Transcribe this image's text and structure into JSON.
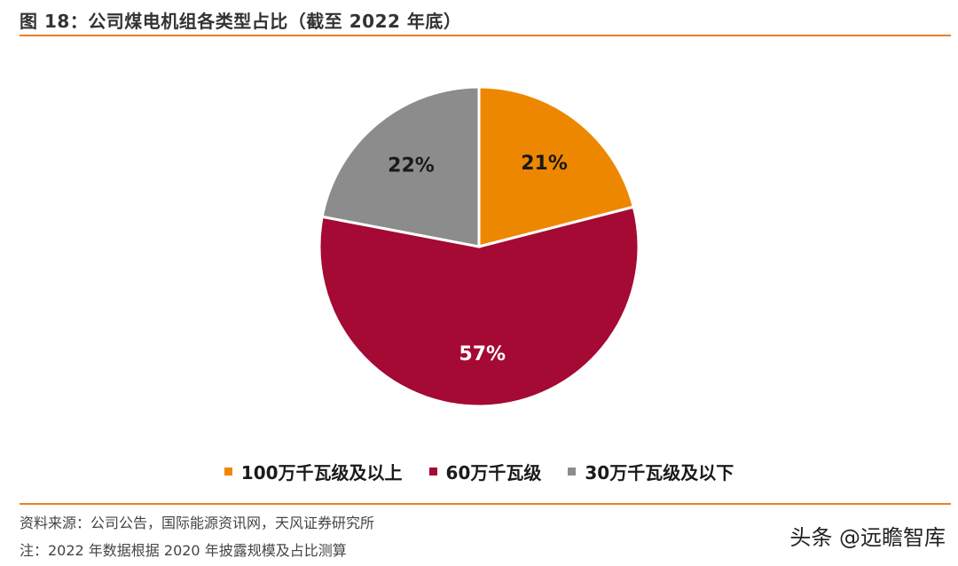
{
  "header": {
    "title": "图 18：公司煤电机组各类型占比（截至 2022 年底）"
  },
  "chart_data": {
    "type": "pie",
    "start_angle_deg": 0,
    "direction": "clockwise",
    "slices": [
      {
        "label": "100万千瓦级及以上",
        "value": 21,
        "display": "21%",
        "color": "#ee8700"
      },
      {
        "label": "60万千瓦级",
        "value": 57,
        "display": "57%",
        "color": "#a40a33"
      },
      {
        "label": "30万千瓦级及以下",
        "value": 22,
        "display": "22%",
        "color": "#8c8c8c"
      }
    ],
    "legend_position": "bottom"
  },
  "footer": {
    "source": "资料来源：公司公告，国际能源资讯网，天风证券研究所",
    "note": "注：2022 年数据根据 2020 年披露规模及占比测算"
  },
  "watermark": "头条 @远瞻智库"
}
